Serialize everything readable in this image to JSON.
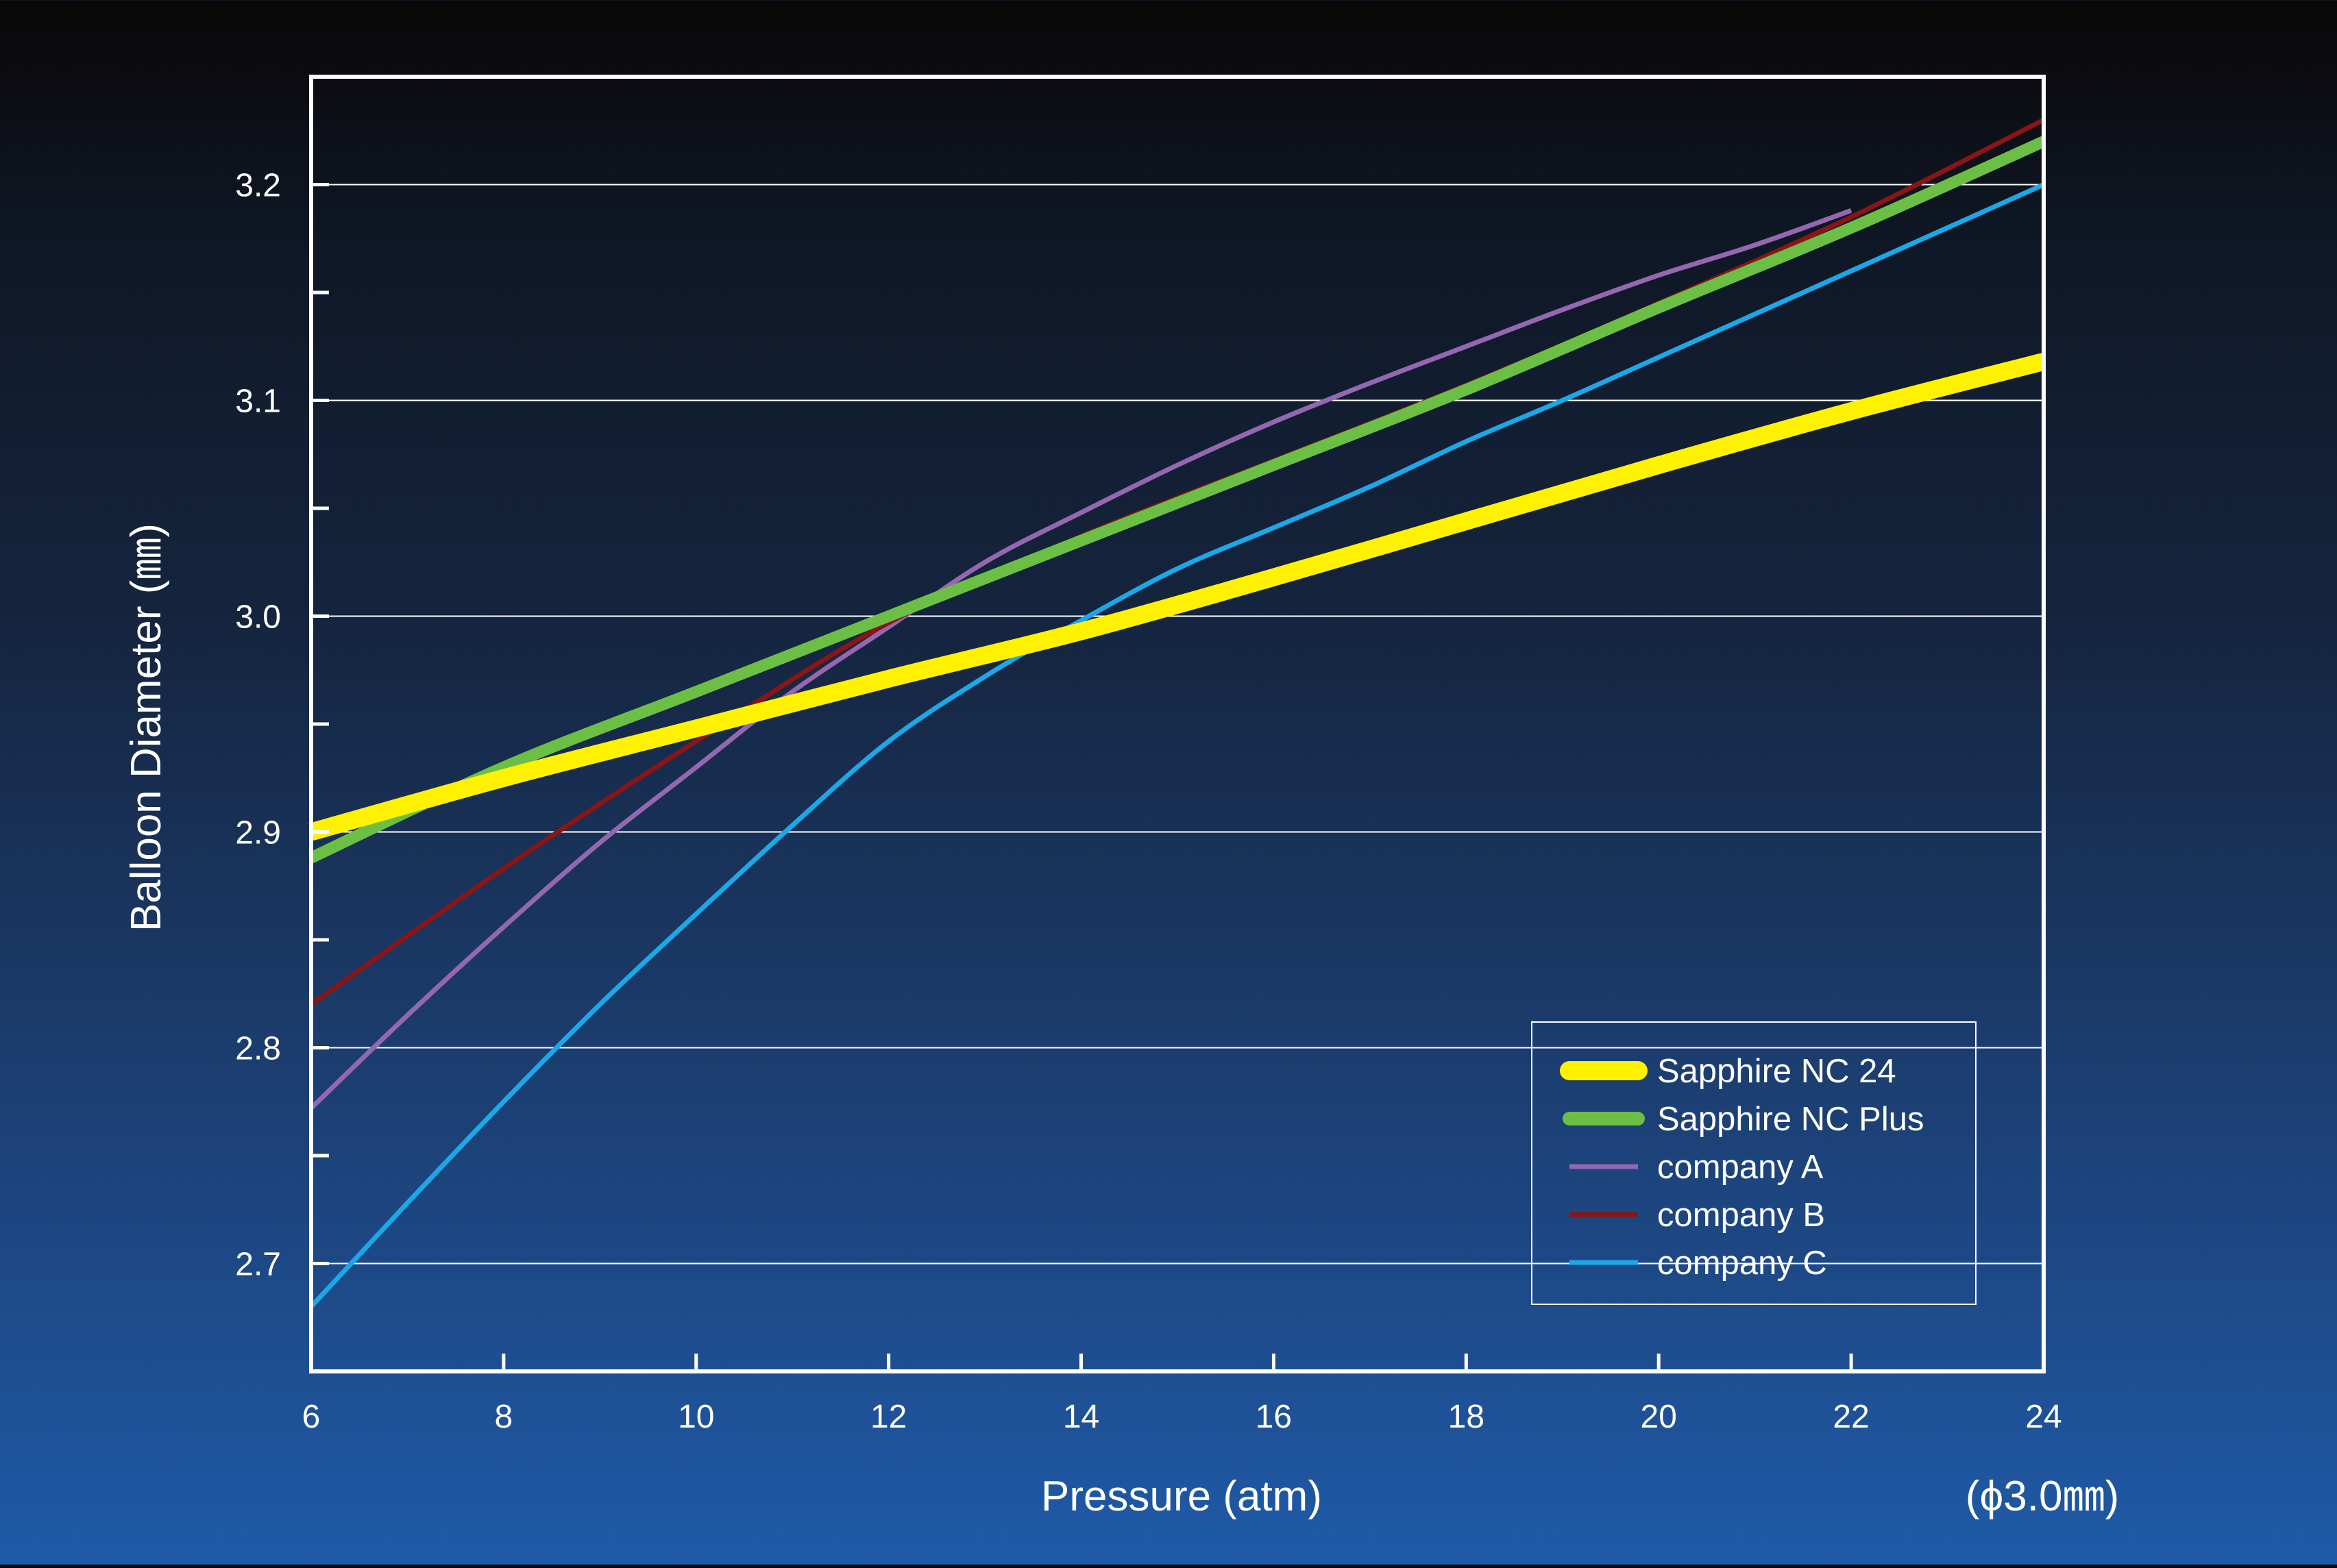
{
  "chart_data": {
    "type": "line",
    "title": "",
    "xlabel": "Pressure (atm)",
    "ylabel": "Balloon Diameter (㎜)",
    "annotation": "(ϕ3.0㎜)",
    "xlim": [
      6,
      24
    ],
    "ylim": [
      2.65,
      3.25
    ],
    "x_ticks": [
      6,
      8,
      10,
      12,
      14,
      16,
      18,
      20,
      22,
      24
    ],
    "x_tick_labels": [
      "6",
      "8",
      "10",
      "12",
      "14",
      "16",
      "18",
      "20",
      "22",
      "24"
    ],
    "y_ticks": [
      2.7,
      2.8,
      2.9,
      3.0,
      3.1,
      3.2
    ],
    "y_tick_labels": [
      "2.7",
      "2.8",
      "2.9",
      "3.0",
      "3.1",
      "3.2"
    ],
    "y_minor_ticks": [
      2.75,
      2.85,
      2.95,
      3.05,
      3.15
    ],
    "grid": "horizontal",
    "legend_position": "bottom-right",
    "series": [
      {
        "name": "Sapphire NC 24",
        "color": "#fff200",
        "x": [
          6,
          8,
          10,
          12,
          14,
          16,
          18,
          20,
          22,
          24
        ],
        "y": [
          2.9,
          2.925,
          2.948,
          2.971,
          2.993,
          3.018,
          3.044,
          3.07,
          3.095,
          3.118
        ]
      },
      {
        "name": "Sapphire NC Plus",
        "color": "#6cbf45",
        "x": [
          6,
          8,
          10,
          12,
          14,
          16,
          18,
          20,
          22,
          24
        ],
        "y": [
          2.888,
          2.93,
          2.965,
          3.0,
          3.035,
          3.07,
          3.105,
          3.143,
          3.18,
          3.22
        ]
      },
      {
        "name": "company A",
        "color": "#9467b0",
        "x": [
          6,
          7,
          8,
          9,
          10,
          11,
          12,
          13,
          14,
          15,
          16,
          17,
          18,
          19,
          20,
          21,
          22
        ],
        "y": [
          2.772,
          2.815,
          2.856,
          2.895,
          2.93,
          2.965,
          2.995,
          3.025,
          3.048,
          3.07,
          3.09,
          3.108,
          3.125,
          3.142,
          3.158,
          3.172,
          3.188
        ]
      },
      {
        "name": "company B",
        "color": "#8b1414",
        "x": [
          6,
          8,
          10,
          12,
          14,
          16,
          18,
          20,
          22,
          24
        ],
        "y": [
          2.82,
          2.883,
          2.942,
          2.997,
          3.037,
          3.072,
          3.107,
          3.145,
          3.185,
          3.23
        ]
      },
      {
        "name": "company C",
        "color": "#1ba8e8",
        "x": [
          6,
          7,
          8,
          9,
          10,
          11,
          12,
          13,
          14,
          15,
          16,
          17,
          18,
          19,
          20,
          21,
          22,
          23,
          24
        ],
        "y": [
          2.68,
          2.728,
          2.775,
          2.82,
          2.862,
          2.903,
          2.942,
          2.972,
          2.998,
          3.022,
          3.041,
          3.06,
          3.081,
          3.1,
          3.12,
          3.14,
          3.16,
          3.18,
          3.2
        ]
      }
    ]
  }
}
